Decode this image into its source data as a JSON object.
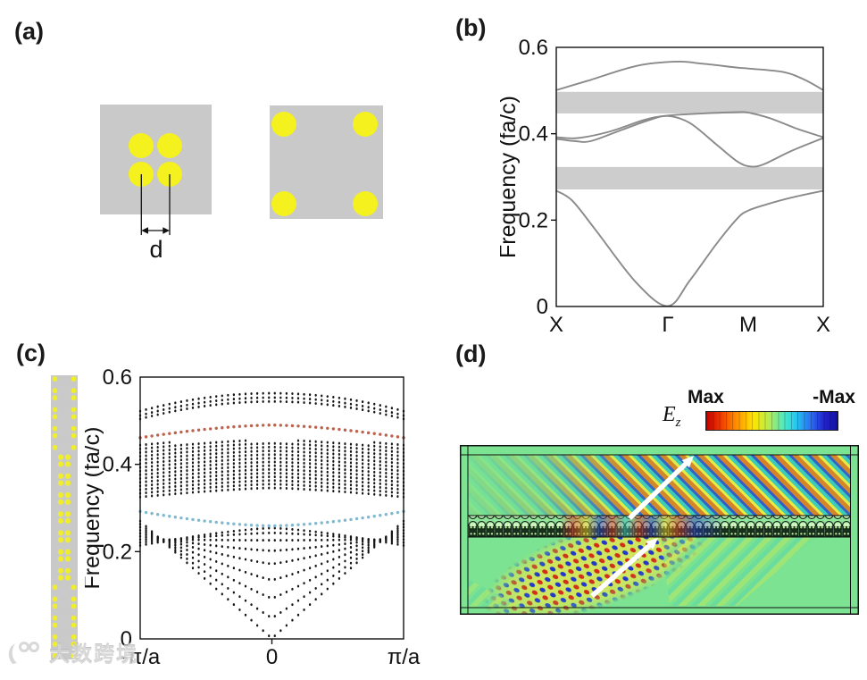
{
  "watermark": {
    "text": "大数跨境"
  },
  "panels": {
    "a": {
      "label": "(a)",
      "distance_label": "d"
    },
    "b": {
      "label": "(b)"
    },
    "c": {
      "label": "(c)"
    },
    "d": {
      "label": "(d)",
      "colorbar": {
        "max_label": "Max",
        "neg_max_label": "-Max"
      },
      "field_label": "E",
      "field_sub": "z"
    }
  },
  "colors": {
    "hole_yellow": "#f4f11f",
    "slab_gray": "#c9c9c9",
    "gap_gray": "#cdcdcd",
    "bulk_curve_gray": "#8a8a8a",
    "upper_edge_state_red": "#b85a42",
    "lower_edge_state_blue": "#78b4cc",
    "field_background_green": "#7be391",
    "colorbar_positive": "#c00000",
    "colorbar_negative": "#1212a0"
  },
  "chart_data": [
    {
      "id": "bulk-band-structure",
      "type": "line",
      "ylabel": "Frequency (fa/c)",
      "ylim": [
        0,
        0.6
      ],
      "yticks": [
        {
          "v": 0,
          "label": "0",
          "tick": false
        },
        {
          "v": 0.2,
          "label": "0.2",
          "tick": true
        },
        {
          "v": 0.4,
          "label": "0.4",
          "tick": true
        },
        {
          "v": 0.6,
          "label": "0.6",
          "tick": false
        }
      ],
      "xticks": [
        {
          "pos": 0,
          "label": "X",
          "tick": false
        },
        {
          "pos": 0.418,
          "label": "Γ",
          "tick": false
        },
        {
          "pos": 0.719,
          "label": "M",
          "tick": false
        },
        {
          "pos": 1,
          "label": "X",
          "tick": false
        }
      ],
      "gap_bands": [
        [
          0.271,
          0.323
        ],
        [
          0.447,
          0.497
        ]
      ],
      "gap_color": "#cdcdcd",
      "line_color": "#8a8a8a",
      "series": [
        {
          "name": "band-1",
          "points": [
            [
              0,
              0.268
            ],
            [
              0.06,
              0.245
            ],
            [
              0.15,
              0.175
            ],
            [
              0.3,
              0.055
            ],
            [
              0.418,
              0.001
            ],
            [
              0.5,
              0.06
            ],
            [
              0.6,
              0.145
            ],
            [
              0.68,
              0.205
            ],
            [
              0.719,
              0.222
            ],
            [
              0.78,
              0.235
            ],
            [
              0.88,
              0.252
            ],
            [
              1,
              0.268
            ]
          ]
        },
        {
          "name": "band-2",
          "points": [
            [
              0,
              0.388
            ],
            [
              0.07,
              0.383
            ],
            [
              0.13,
              0.383
            ],
            [
              0.25,
              0.41
            ],
            [
              0.35,
              0.432
            ],
            [
              0.418,
              0.441
            ],
            [
              0.5,
              0.425
            ],
            [
              0.6,
              0.375
            ],
            [
              0.68,
              0.335
            ],
            [
              0.73,
              0.324
            ],
            [
              0.78,
              0.33
            ],
            [
              0.88,
              0.36
            ],
            [
              1,
              0.39
            ]
          ]
        },
        {
          "name": "band-3",
          "points": [
            [
              0,
              0.392
            ],
            [
              0.08,
              0.39
            ],
            [
              0.2,
              0.405
            ],
            [
              0.33,
              0.432
            ],
            [
              0.418,
              0.442
            ],
            [
              0.55,
              0.447
            ],
            [
              0.68,
              0.45
            ],
            [
              0.719,
              0.449
            ],
            [
              0.8,
              0.436
            ],
            [
              0.9,
              0.412
            ],
            [
              1,
              0.392
            ]
          ]
        },
        {
          "name": "band-4",
          "points": [
            [
              0,
              0.501
            ],
            [
              0.12,
              0.523
            ],
            [
              0.3,
              0.557
            ],
            [
              0.45,
              0.567
            ],
            [
              0.55,
              0.562
            ],
            [
              0.68,
              0.553
            ],
            [
              0.719,
              0.551
            ],
            [
              0.85,
              0.543
            ],
            [
              0.93,
              0.525
            ],
            [
              1,
              0.501
            ]
          ]
        }
      ]
    },
    {
      "id": "projected-band-structure",
      "type": "scatter",
      "ylabel": "Frequency (fa/c)",
      "ylim": [
        0,
        0.6
      ],
      "yticks": [
        {
          "v": 0,
          "label": "0",
          "tick": false
        },
        {
          "v": 0.2,
          "label": "0.2",
          "tick": true
        },
        {
          "v": 0.4,
          "label": "0.4",
          "tick": true
        },
        {
          "v": 0.6,
          "label": "0.6",
          "tick": false
        }
      ],
      "xticks": [
        {
          "pos": 0,
          "label": "-π/a",
          "tick": false
        },
        {
          "pos": 0.5,
          "label": "0",
          "tick": true
        },
        {
          "pos": 1,
          "label": "π/a",
          "tick": false
        }
      ],
      "n_k": 46,
      "dot_color": "#151515",
      "edge_states": [
        {
          "name": "upper-interface-state",
          "color": "#b85a42",
          "f_center": 0.49,
          "f_edge": 0.461,
          "power": 1.6
        },
        {
          "name": "lower-interface-state",
          "color": "#78b4cc",
          "f_center": 0.259,
          "f_edge": 0.292,
          "power": 1.6
        }
      ],
      "bulk_curves": [
        {
          "f_center": 0.001,
          "f_edge": 0.27,
          "power": 1.0
        },
        {
          "f_center": 0.048,
          "f_edge": 0.263,
          "power": 1.05
        },
        {
          "f_center": 0.093,
          "f_edge": 0.256,
          "power": 1.1
        },
        {
          "f_center": 0.135,
          "f_edge": 0.249,
          "power": 1.15
        },
        {
          "f_center": 0.172,
          "f_edge": 0.242,
          "power": 1.2
        },
        {
          "f_center": 0.202,
          "f_edge": 0.235,
          "power": 1.25
        },
        {
          "f_center": 0.226,
          "f_edge": 0.228,
          "power": 1.3
        },
        {
          "f_center": 0.243,
          "f_edge": 0.221,
          "power": 1.35
        },
        {
          "f_center": 0.254,
          "f_edge": 0.214,
          "power": 1.4
        },
        {
          "f_center": 0.563,
          "f_edge": 0.522,
          "power": 2.0
        },
        {
          "f_center": 0.553,
          "f_edge": 0.512,
          "power": 2.0
        },
        {
          "f_center": 0.544,
          "f_edge": 0.504,
          "power": 2.0
        }
      ],
      "bulk_block": {
        "f_bot_center": 0.346,
        "f_bot_edge": 0.325,
        "bot_power": 1.4,
        "f_top_center": 0.455,
        "f_top_edge": 0.448,
        "row_step": 0.0085
      }
    }
  ]
}
